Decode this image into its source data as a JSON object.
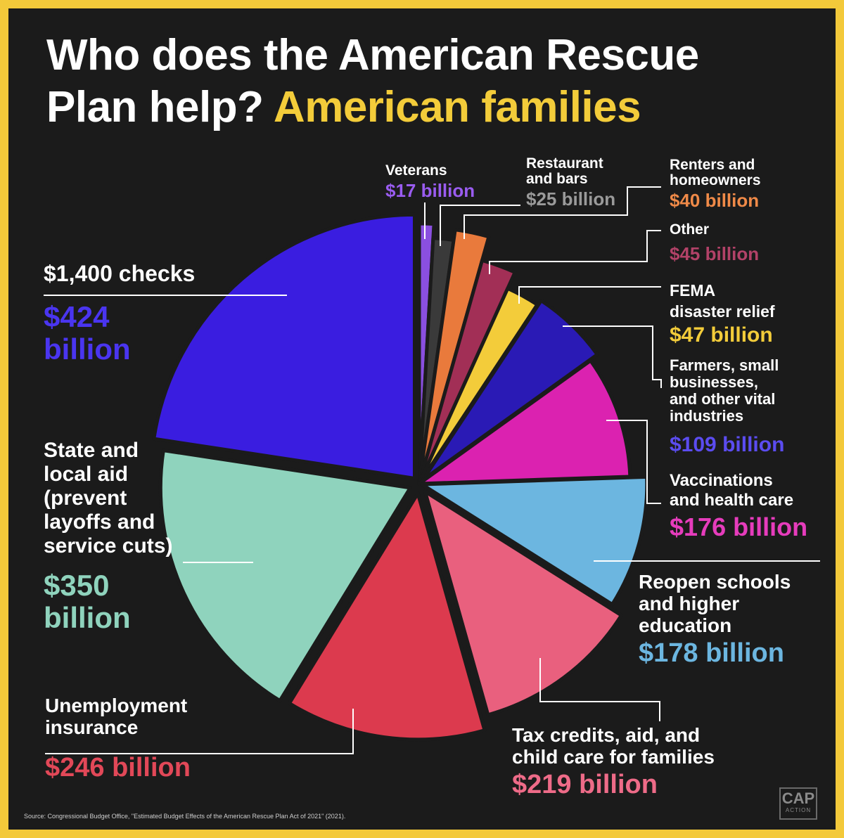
{
  "title": {
    "line1": "Who does the American Rescue",
    "line2_white": "Plan help?",
    "line2_highlight": "American families"
  },
  "source": "Source: Congressional Budget Office, \"Estimated Budget Effects of the American Rescue Plan Act of 2021\" (2021).",
  "logo": {
    "line1": "CAP",
    "line2": "ACTION"
  },
  "colors": {
    "background": "#1b1b1b",
    "border": "#f3c93a",
    "highlight": "#f3cc3a",
    "label_text": "#ffffff"
  },
  "chart_data": {
    "type": "pie",
    "unit": "billion USD",
    "slices": [
      {
        "key": "veterans",
        "label": "Veterans",
        "value_text": "$17 billion",
        "value": 17,
        "color": "#8a4fe0",
        "value_color": "#9a5cf0"
      },
      {
        "key": "restaurants",
        "label": "Restaurant\nand bars",
        "value_text": "$25 billion",
        "value": 25,
        "color": "#3a3a3a",
        "value_color": "#9a9a9a"
      },
      {
        "key": "renters",
        "label": "Renters and\nhomeowners",
        "value_text": "$40 billion",
        "value": 40,
        "color": "#e97a3c",
        "value_color": "#f08a48"
      },
      {
        "key": "other",
        "label": "Other",
        "value_text": "$45 billion",
        "value": 45,
        "color": "#a22f56",
        "value_color": "#b24268"
      },
      {
        "key": "fema",
        "label": "FEMA\ndisaster relief",
        "value_text": "$47 billion",
        "value": 47,
        "color": "#f3cc3a",
        "value_color": "#f3cc3a"
      },
      {
        "key": "farmers",
        "label": "Farmers, small\nbusinesses,\nand other vital\nindustries",
        "value_text": "$109 billion",
        "value": 109,
        "color": "#2a1ab5",
        "value_color": "#5b4cf0"
      },
      {
        "key": "vaccinations",
        "label": "Vaccinations\nand health care",
        "value_text": "$176 billion",
        "value": 176,
        "color": "#db22b0",
        "value_color": "#e63cbc"
      },
      {
        "key": "schools",
        "label": "Reopen schools\nand higher\neducation",
        "value_text": "$178 billion",
        "value": 178,
        "color": "#6cb6e0",
        "value_color": "#6cb6e0"
      },
      {
        "key": "tax_credits",
        "label": "Tax credits, aid, and\nchild care for families",
        "value_text": "$219 billion",
        "value": 219,
        "color": "#e9607e",
        "value_color": "#ee6b88"
      },
      {
        "key": "unemployment",
        "label": "Unemployment\ninsurance",
        "value_text": "$246 billion",
        "value": 246,
        "color": "#dc3a4e",
        "value_color": "#e24858"
      },
      {
        "key": "state_local",
        "label": "State and\nlocal aid\n(prevent\nlayoffs and\nservice cuts)",
        "value_text": "$350 billion",
        "value_display": "$350\nbillion",
        "value": 350,
        "color": "#8fd3bd",
        "value_color": "#8fd3bd"
      },
      {
        "key": "checks",
        "label": "$1,400 checks",
        "value_text": "$424 billion",
        "value_display": "$424\nbillion",
        "value": 424,
        "color": "#3a1de0",
        "value_color": "#4a35f0"
      }
    ]
  }
}
